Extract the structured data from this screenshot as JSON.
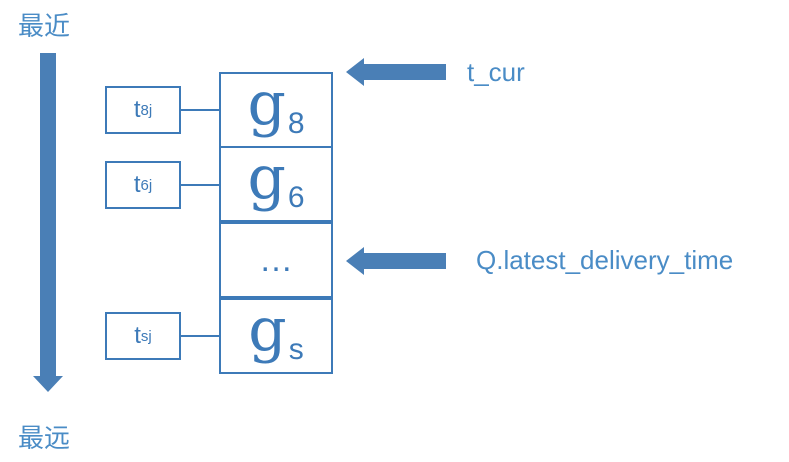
{
  "labels": {
    "top": "最近",
    "bottom": "最远"
  },
  "stack": [
    {
      "main": "g",
      "sub": "8"
    },
    {
      "main": "g",
      "sub": "6"
    },
    {
      "main": "…",
      "sub": ""
    },
    {
      "main": "g",
      "sub": "s"
    }
  ],
  "tags": [
    {
      "main": "t",
      "sub": "8j"
    },
    {
      "main": "t",
      "sub": "6j"
    },
    {
      "main": "t",
      "sub": "sj"
    }
  ],
  "pointers": [
    {
      "text": "t_cur"
    },
    {
      "text": "Q.latest_delivery_time"
    }
  ],
  "colors": {
    "accent": "#4a8cc6",
    "stroke": "#3d7ab8",
    "arrow": "#4a7fb6"
  }
}
